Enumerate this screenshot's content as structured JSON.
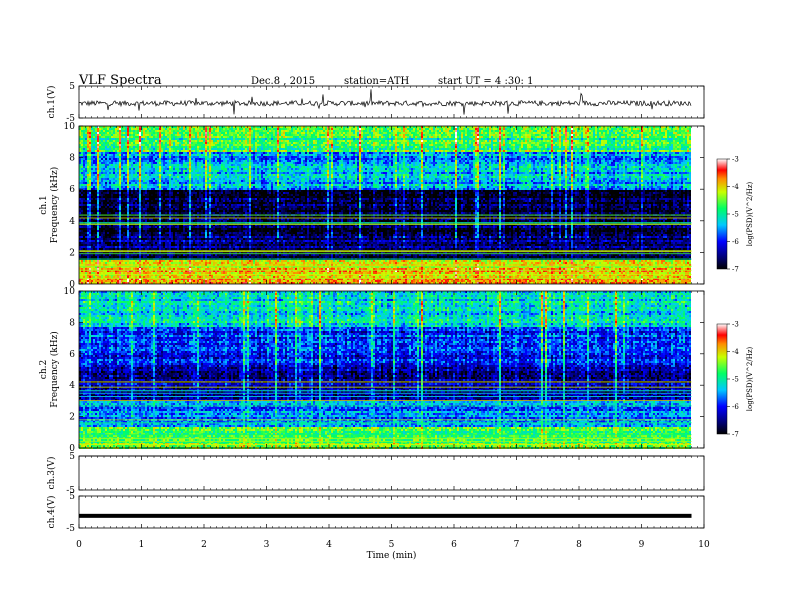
{
  "header": {
    "title": "VLF Spectra",
    "date": "Dec.8 , 2015",
    "station": "station=ATH",
    "start": "start UT = 4 :30: 1"
  },
  "chart_data": [
    {
      "type": "line",
      "panel": "ch1-waveform",
      "ylabel": "ch.1(V)",
      "ylim": [
        -5,
        5
      ],
      "y_ticks": [
        "5",
        "-5"
      ],
      "x": [
        0,
        9.8
      ],
      "values": [
        -0.4,
        -0.4
      ],
      "note_series": "noisy waveform around -0.4 V with sparse spikes"
    },
    {
      "type": "heatmap",
      "panel": "ch1-spectrogram",
      "ylabel": "ch.1 Frequency (kHz)",
      "ylim": [
        0,
        10
      ],
      "y_ticks": [
        "0",
        "2",
        "4",
        "6",
        "8",
        "10"
      ],
      "x_range": [
        0,
        9.8
      ],
      "colorbar": {
        "label": "log(PSD)(V^2/Hz)",
        "range": [
          -7,
          -3
        ],
        "ticks": [
          "-3",
          "-4",
          "-5",
          "-6",
          "-7"
        ]
      },
      "bands_khz": [
        {
          "from": 0,
          "to": 1.6,
          "level": -4.0
        },
        {
          "from": 1.6,
          "to": 3.2,
          "level": -6.6
        },
        {
          "from": 3.2,
          "to": 6.0,
          "level": -6.8
        },
        {
          "from": 6.0,
          "to": 8.4,
          "level": -5.5
        },
        {
          "from": 8.4,
          "to": 10,
          "level": -4.8
        }
      ]
    },
    {
      "type": "heatmap",
      "panel": "ch2-spectrogram",
      "ylabel": "ch.2 Frequency (kHz)",
      "ylim": [
        0,
        10
      ],
      "y_ticks": [
        "0",
        "2",
        "4",
        "6",
        "8",
        "10"
      ],
      "x_range": [
        0,
        9.8
      ],
      "colorbar": {
        "label": "log(PSD)(V^2/Hz)",
        "range": [
          -7,
          -3
        ],
        "ticks": [
          "-3",
          "-4",
          "-5",
          "-6",
          "-7"
        ]
      },
      "bands_khz": [
        {
          "from": 0,
          "to": 1.4,
          "level": -4.6
        },
        {
          "from": 1.4,
          "to": 3.0,
          "level": -5.6
        },
        {
          "from": 3.0,
          "to": 5.4,
          "level": -6.4
        },
        {
          "from": 5.4,
          "to": 7.8,
          "level": -5.9
        },
        {
          "from": 7.8,
          "to": 10,
          "level": -5.2
        }
      ]
    },
    {
      "type": "line",
      "panel": "ch3-waveform",
      "ylabel": "ch.3(V)",
      "ylim": [
        -5,
        5
      ],
      "y_ticks": [
        "5",
        "-5"
      ],
      "x": [
        0,
        9.8
      ],
      "values": [
        5,
        5
      ]
    },
    {
      "type": "line",
      "panel": "ch4-waveform",
      "ylabel": "ch.4(V)",
      "ylim": [
        -5,
        5
      ],
      "y_ticks": [
        "5",
        "-5"
      ],
      "x": [
        0,
        9.8
      ],
      "values": [
        -1.2,
        -1.2
      ]
    }
  ],
  "x_axis": {
    "label": "Time (min)",
    "ticks": [
      "0",
      "1",
      "2",
      "3",
      "4",
      "5",
      "6",
      "7",
      "8",
      "9",
      "10"
    ],
    "range": [
      0,
      10
    ]
  },
  "colors": {
    "scale": [
      "#000000",
      "#00006e",
      "#0000ff",
      "#00c8ff",
      "#00ff64",
      "#c8ff00",
      "#ff8c00",
      "#ff0000",
      "#ffffff"
    ]
  }
}
